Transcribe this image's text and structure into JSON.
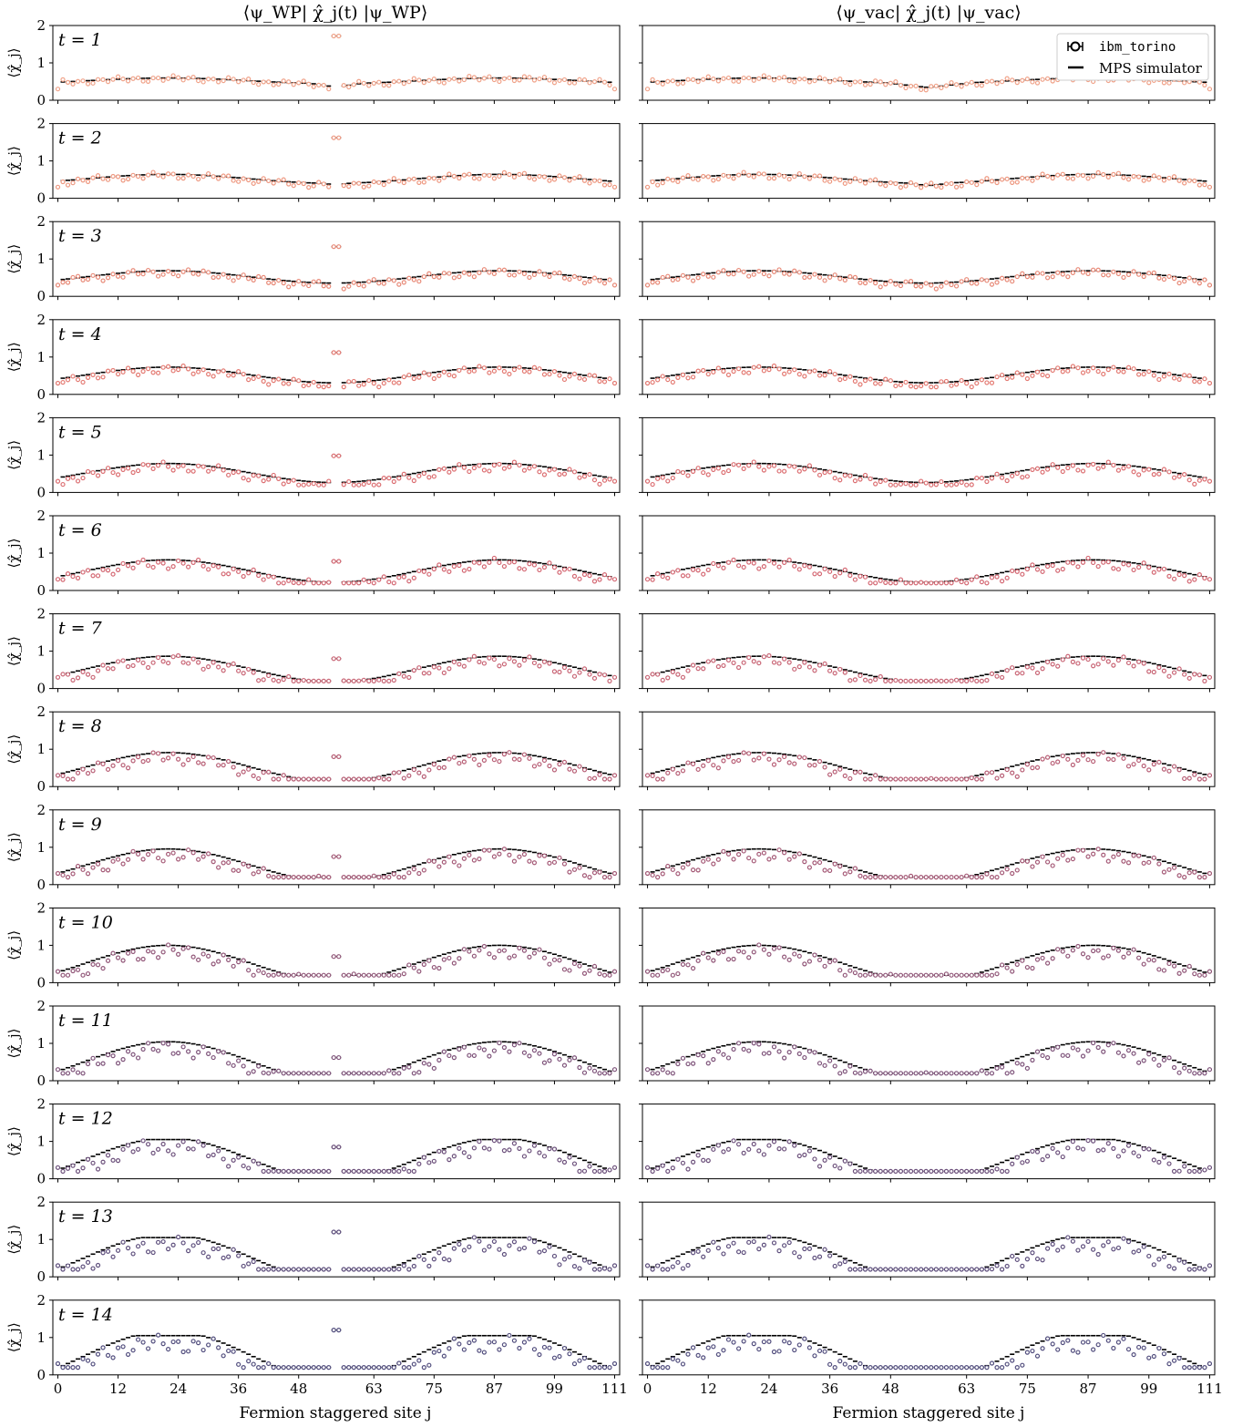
{
  "figure": {
    "column_titles": [
      "⟨ψ_WP| χ̂_j(t) |ψ_WP⟩",
      "⟨ψ_vac| χ̂_j(t) |ψ_vac⟩"
    ],
    "xlabel": "Fermion staggered site j",
    "ylabel": "⟨χ̂_j⟩",
    "legend": [
      {
        "label": "ibm_torino",
        "marker": "open-circle-errorbar"
      },
      {
        "label": "MPS simulator",
        "marker": "dash"
      }
    ]
  },
  "chart_data": {
    "type": "scatter",
    "description_grid": "14 rows (t = 1..14) x 2 columns (wavepacket, vacuum)",
    "xticks": [
      0,
      12,
      24,
      36,
      48,
      63,
      75,
      87,
      99,
      111
    ],
    "xlim": [
      -1,
      112
    ],
    "yticks": [
      0,
      1,
      2
    ],
    "ylim": [
      0,
      2
    ],
    "n_sites": 112,
    "rows": [
      {
        "label": "t = 1",
        "t": 1
      },
      {
        "label": "t = 2",
        "t": 2
      },
      {
        "label": "t = 3",
        "t": 3
      },
      {
        "label": "t = 4",
        "t": 4
      },
      {
        "label": "t = 5",
        "t": 5
      },
      {
        "label": "t = 6",
        "t": 6
      },
      {
        "label": "t = 7",
        "t": 7
      },
      {
        "label": "t = 8",
        "t": 8
      },
      {
        "label": "t = 9",
        "t": 9
      },
      {
        "label": "t = 10",
        "t": 10
      },
      {
        "label": "t = 11",
        "t": 11
      },
      {
        "label": "t = 12",
        "t": 12
      },
      {
        "label": "t = 13",
        "t": 13
      },
      {
        "label": "t = 14",
        "t": 14
      }
    ],
    "wavepacket_peak_mps": [
      1.72,
      1.62,
      1.33,
      1.12,
      0.98,
      0.78,
      0.8,
      0.8,
      0.75,
      0.7,
      0.62,
      0.85,
      1.2,
      1.2
    ],
    "series_colors": [
      "#f0a38a",
      "#ee9880",
      "#e88a78",
      "#e47b73",
      "#dc6f72",
      "#d46873",
      "#c96676",
      "#b85f76",
      "#a55a77",
      "#915678",
      "#7e537a",
      "#6d517c",
      "#5e4f7d",
      "#524e7e"
    ],
    "mps_color": "#000000"
  }
}
